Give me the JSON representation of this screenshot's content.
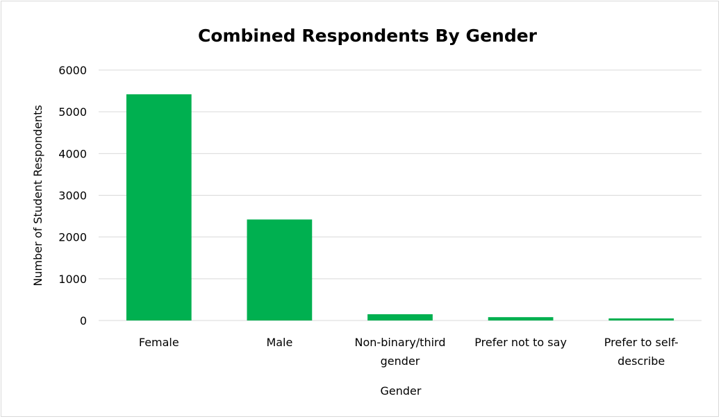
{
  "chart_data": {
    "type": "bar",
    "title": "Combined Respondents By Gender",
    "xlabel": "Gender",
    "ylabel": "Number of Student Respondents",
    "categories": [
      [
        "Female"
      ],
      [
        "Male"
      ],
      [
        "Non-binary/third",
        "gender"
      ],
      [
        "Prefer not to say"
      ],
      [
        "Prefer to self-",
        "describe"
      ]
    ],
    "values": [
      5420,
      2420,
      150,
      80,
      50
    ],
    "ylim": [
      0,
      6000
    ],
    "yticks": [
      0,
      1000,
      2000,
      3000,
      4000,
      5000,
      6000
    ],
    "grid": true,
    "legend": "none",
    "colors": {
      "bar": "#00b050",
      "grid": "#d9d9d9",
      "border": "#d9d9d9"
    }
  }
}
